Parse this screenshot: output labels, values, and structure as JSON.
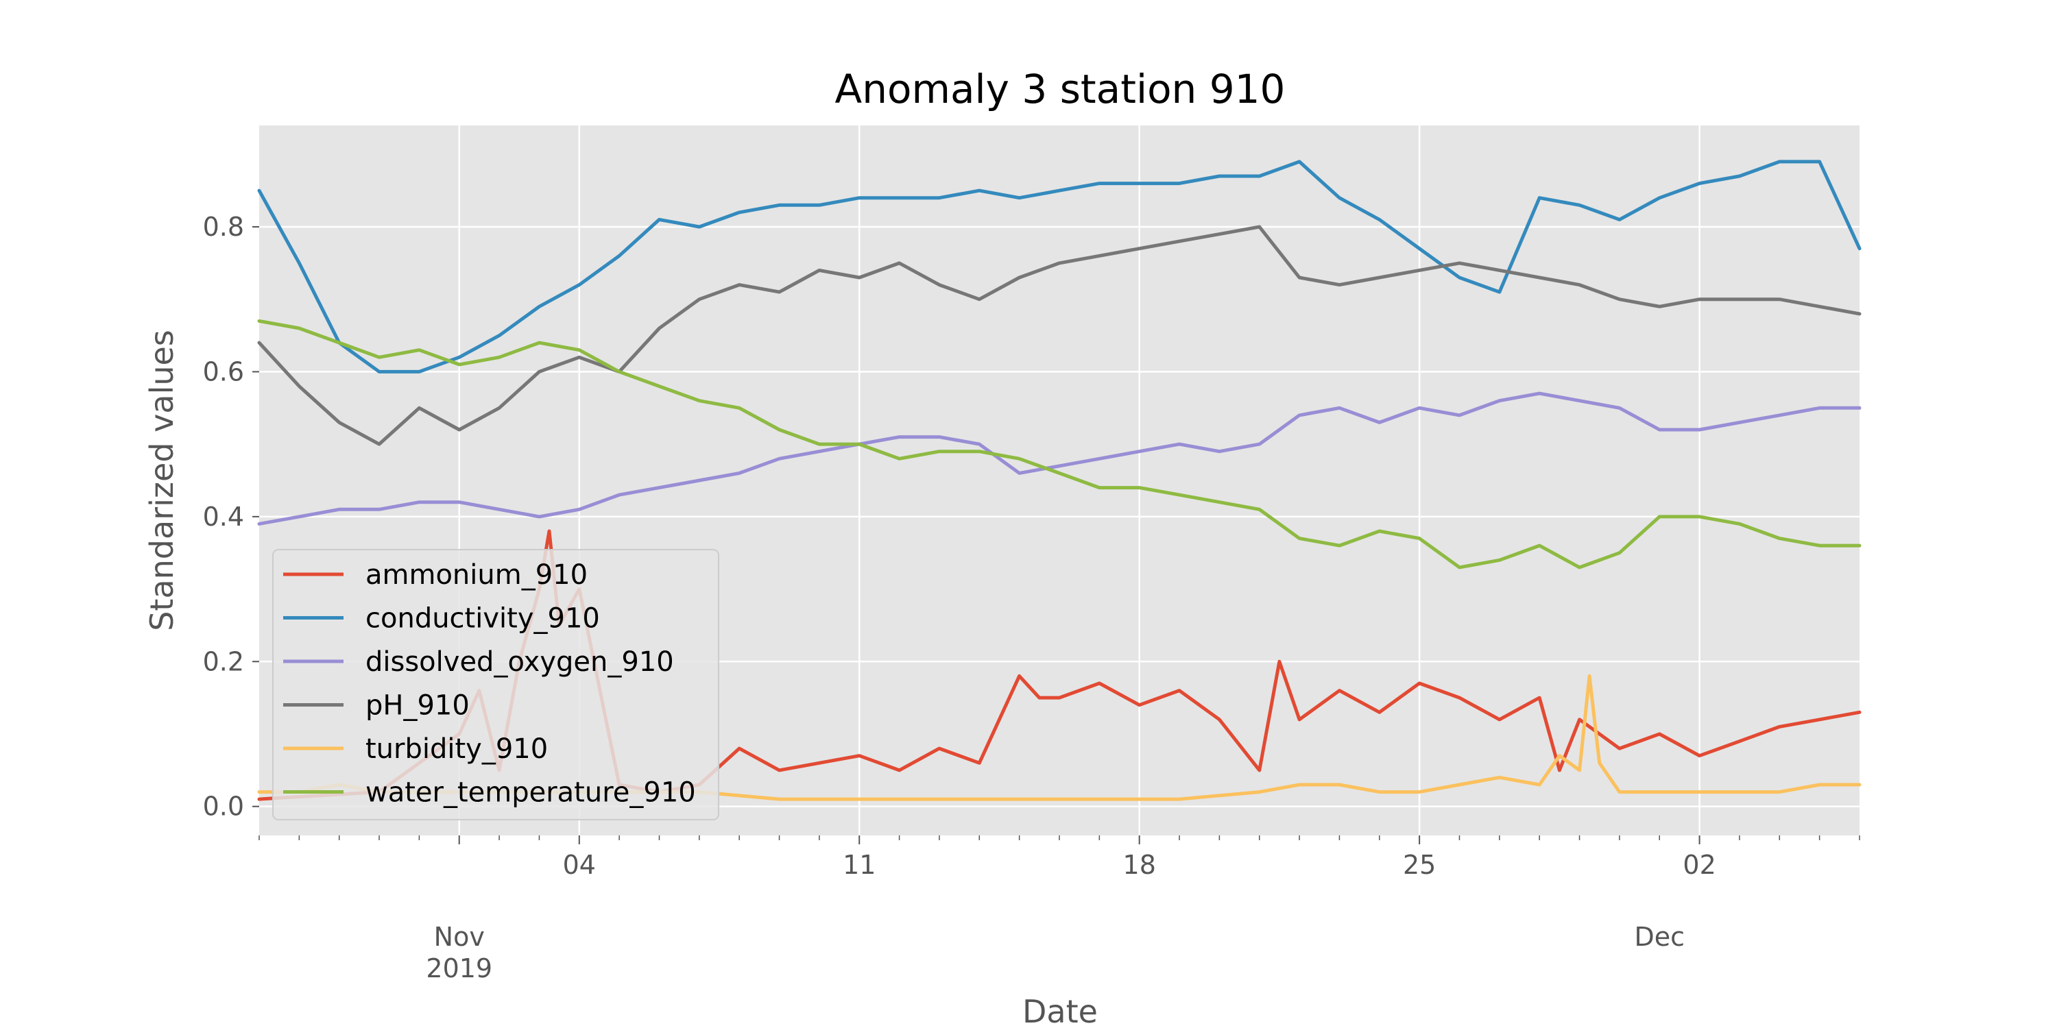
{
  "chart_data": {
    "type": "line",
    "title": "Anomaly 3 station 910",
    "xlabel": "Date",
    "ylabel": "Standarized values",
    "grid": true,
    "legend_position": "lower-left",
    "xlim": [
      "2019-10-27",
      "2019-12-06"
    ],
    "ylim": [
      -0.04,
      0.94
    ],
    "y_ticks": [
      0.0,
      0.2,
      0.4,
      0.6,
      0.8
    ],
    "y_tick_labels": [
      "0.0",
      "0.2",
      "0.4",
      "0.6",
      "0.8"
    ],
    "x_major_ticks": [
      {
        "date": "2019-11-01",
        "label": ""
      },
      {
        "date": "2019-11-04",
        "label": "04"
      },
      {
        "date": "2019-11-11",
        "label": "11"
      },
      {
        "date": "2019-11-18",
        "label": "18"
      },
      {
        "date": "2019-11-25",
        "label": "25"
      },
      {
        "date": "2019-12-02",
        "label": "02"
      }
    ],
    "x_group_labels": [
      {
        "date": "2019-11-01",
        "month": "Nov",
        "year": "2019"
      },
      {
        "date": "2019-12-01",
        "month": "Dec",
        "year": ""
      }
    ],
    "series": [
      {
        "name": "ammonium_910",
        "color": "#E24A33",
        "x": [
          "2019-10-27",
          "2019-10-30",
          "2019-11-01",
          "2019-11-01 12:00",
          "2019-11-02",
          "2019-11-02 12:00",
          "2019-11-03",
          "2019-11-03 06:00",
          "2019-11-03 12:00",
          "2019-11-04",
          "2019-11-05",
          "2019-11-06",
          "2019-11-07",
          "2019-11-08",
          "2019-11-09",
          "2019-11-10",
          "2019-11-11",
          "2019-11-12",
          "2019-11-13",
          "2019-11-14",
          "2019-11-15",
          "2019-11-15 12:00",
          "2019-11-16",
          "2019-11-17",
          "2019-11-18",
          "2019-11-19",
          "2019-11-20",
          "2019-11-21",
          "2019-11-21 12:00",
          "2019-11-22",
          "2019-11-23",
          "2019-11-24",
          "2019-11-25",
          "2019-11-26",
          "2019-11-27",
          "2019-11-28",
          "2019-11-28 12:00",
          "2019-11-29",
          "2019-11-30",
          "2019-12-01",
          "2019-12-02",
          "2019-12-03",
          "2019-12-04",
          "2019-12-05",
          "2019-12-06"
        ],
        "y": [
          0.01,
          0.02,
          0.1,
          0.16,
          0.05,
          0.2,
          0.3,
          0.38,
          0.25,
          0.3,
          0.03,
          0.02,
          0.03,
          0.08,
          0.05,
          0.06,
          0.07,
          0.05,
          0.08,
          0.06,
          0.18,
          0.15,
          0.15,
          0.17,
          0.14,
          0.16,
          0.12,
          0.05,
          0.2,
          0.12,
          0.16,
          0.13,
          0.17,
          0.15,
          0.12,
          0.15,
          0.05,
          0.12,
          0.08,
          0.1,
          0.07,
          0.09,
          0.11,
          0.12,
          0.13
        ]
      },
      {
        "name": "conductivity_910",
        "color": "#348ABD",
        "x": [
          "2019-10-27",
          "2019-10-28",
          "2019-10-29",
          "2019-10-30",
          "2019-10-31",
          "2019-11-01",
          "2019-11-02",
          "2019-11-03",
          "2019-11-04",
          "2019-11-05",
          "2019-11-06",
          "2019-11-07",
          "2019-11-08",
          "2019-11-09",
          "2019-11-10",
          "2019-11-11",
          "2019-11-12",
          "2019-11-13",
          "2019-11-14",
          "2019-11-15",
          "2019-11-16",
          "2019-11-17",
          "2019-11-18",
          "2019-11-19",
          "2019-11-20",
          "2019-11-21",
          "2019-11-22",
          "2019-11-23",
          "2019-11-24",
          "2019-11-25",
          "2019-11-26",
          "2019-11-27",
          "2019-11-28",
          "2019-11-29",
          "2019-11-30",
          "2019-12-01",
          "2019-12-02",
          "2019-12-03",
          "2019-12-04",
          "2019-12-05",
          "2019-12-06"
        ],
        "y": [
          0.85,
          0.75,
          0.64,
          0.6,
          0.6,
          0.62,
          0.65,
          0.69,
          0.72,
          0.76,
          0.81,
          0.8,
          0.82,
          0.83,
          0.83,
          0.84,
          0.84,
          0.84,
          0.85,
          0.84,
          0.85,
          0.86,
          0.86,
          0.86,
          0.87,
          0.87,
          0.89,
          0.84,
          0.81,
          0.77,
          0.73,
          0.71,
          0.84,
          0.83,
          0.81,
          0.84,
          0.86,
          0.87,
          0.89,
          0.89,
          0.77
        ]
      },
      {
        "name": "dissolved_oxygen_910",
        "color": "#988ED5",
        "x": [
          "2019-10-27",
          "2019-10-28",
          "2019-10-29",
          "2019-10-30",
          "2019-10-31",
          "2019-11-01",
          "2019-11-02",
          "2019-11-03",
          "2019-11-04",
          "2019-11-05",
          "2019-11-06",
          "2019-11-07",
          "2019-11-08",
          "2019-11-09",
          "2019-11-10",
          "2019-11-11",
          "2019-11-12",
          "2019-11-13",
          "2019-11-14",
          "2019-11-15",
          "2019-11-16",
          "2019-11-17",
          "2019-11-18",
          "2019-11-19",
          "2019-11-20",
          "2019-11-21",
          "2019-11-22",
          "2019-11-23",
          "2019-11-24",
          "2019-11-25",
          "2019-11-26",
          "2019-11-27",
          "2019-11-28",
          "2019-11-29",
          "2019-11-30",
          "2019-12-01",
          "2019-12-02",
          "2019-12-03",
          "2019-12-04",
          "2019-12-05",
          "2019-12-06"
        ],
        "y": [
          0.39,
          0.4,
          0.41,
          0.41,
          0.42,
          0.42,
          0.41,
          0.4,
          0.41,
          0.43,
          0.44,
          0.45,
          0.46,
          0.48,
          0.49,
          0.5,
          0.51,
          0.51,
          0.5,
          0.46,
          0.47,
          0.48,
          0.49,
          0.5,
          0.49,
          0.5,
          0.54,
          0.55,
          0.53,
          0.55,
          0.54,
          0.56,
          0.57,
          0.56,
          0.55,
          0.52,
          0.52,
          0.53,
          0.54,
          0.55,
          0.55
        ]
      },
      {
        "name": "pH_910",
        "color": "#777777",
        "x": [
          "2019-10-27",
          "2019-10-28",
          "2019-10-29",
          "2019-10-30",
          "2019-10-31",
          "2019-11-01",
          "2019-11-02",
          "2019-11-03",
          "2019-11-04",
          "2019-11-05",
          "2019-11-06",
          "2019-11-07",
          "2019-11-08",
          "2019-11-09",
          "2019-11-10",
          "2019-11-11",
          "2019-11-12",
          "2019-11-13",
          "2019-11-14",
          "2019-11-15",
          "2019-11-16",
          "2019-11-17",
          "2019-11-18",
          "2019-11-19",
          "2019-11-20",
          "2019-11-21",
          "2019-11-22",
          "2019-11-23",
          "2019-11-24",
          "2019-11-25",
          "2019-11-26",
          "2019-11-27",
          "2019-11-28",
          "2019-11-29",
          "2019-11-30",
          "2019-12-01",
          "2019-12-02",
          "2019-12-03",
          "2019-12-04",
          "2019-12-05",
          "2019-12-06"
        ],
        "y": [
          0.64,
          0.58,
          0.53,
          0.5,
          0.55,
          0.52,
          0.55,
          0.6,
          0.62,
          0.6,
          0.66,
          0.7,
          0.72,
          0.71,
          0.74,
          0.73,
          0.75,
          0.72,
          0.7,
          0.73,
          0.75,
          0.76,
          0.77,
          0.78,
          0.79,
          0.8,
          0.73,
          0.72,
          0.73,
          0.74,
          0.75,
          0.74,
          0.73,
          0.72,
          0.7,
          0.69,
          0.7,
          0.7,
          0.7,
          0.69,
          0.68
        ]
      },
      {
        "name": "turbidity_910",
        "color": "#FBC15E",
        "x": [
          "2019-10-27",
          "2019-10-28",
          "2019-10-29",
          "2019-10-30",
          "2019-10-31",
          "2019-11-01",
          "2019-11-03",
          "2019-11-05",
          "2019-11-07",
          "2019-11-09",
          "2019-11-11",
          "2019-11-13",
          "2019-11-15",
          "2019-11-17",
          "2019-11-19",
          "2019-11-21",
          "2019-11-22",
          "2019-11-23",
          "2019-11-24",
          "2019-11-25",
          "2019-11-26",
          "2019-11-27",
          "2019-11-28",
          "2019-11-28 12:00",
          "2019-11-29",
          "2019-11-29 06:00",
          "2019-11-29 12:00",
          "2019-11-30",
          "2019-12-01",
          "2019-12-02",
          "2019-12-03",
          "2019-12-04",
          "2019-12-05",
          "2019-12-06"
        ],
        "y": [
          0.02,
          0.02,
          0.03,
          0.02,
          0.02,
          0.02,
          0.02,
          0.02,
          0.02,
          0.01,
          0.01,
          0.01,
          0.01,
          0.01,
          0.01,
          0.02,
          0.03,
          0.03,
          0.02,
          0.02,
          0.03,
          0.04,
          0.03,
          0.07,
          0.05,
          0.18,
          0.06,
          0.02,
          0.02,
          0.02,
          0.02,
          0.02,
          0.03,
          0.03
        ]
      },
      {
        "name": "water_temperature_910",
        "color": "#8EBA42",
        "x": [
          "2019-10-27",
          "2019-10-28",
          "2019-10-29",
          "2019-10-30",
          "2019-10-31",
          "2019-11-01",
          "2019-11-02",
          "2019-11-03",
          "2019-11-04",
          "2019-11-05",
          "2019-11-06",
          "2019-11-07",
          "2019-11-08",
          "2019-11-09",
          "2019-11-10",
          "2019-11-11",
          "2019-11-12",
          "2019-11-13",
          "2019-11-14",
          "2019-11-15",
          "2019-11-16",
          "2019-11-17",
          "2019-11-18",
          "2019-11-19",
          "2019-11-20",
          "2019-11-21",
          "2019-11-22",
          "2019-11-23",
          "2019-11-24",
          "2019-11-25",
          "2019-11-26",
          "2019-11-27",
          "2019-11-28",
          "2019-11-29",
          "2019-11-30",
          "2019-12-01",
          "2019-12-02",
          "2019-12-03",
          "2019-12-04",
          "2019-12-05",
          "2019-12-06"
        ],
        "y": [
          0.67,
          0.66,
          0.64,
          0.62,
          0.63,
          0.61,
          0.62,
          0.64,
          0.63,
          0.6,
          0.58,
          0.56,
          0.55,
          0.52,
          0.5,
          0.5,
          0.48,
          0.49,
          0.49,
          0.48,
          0.46,
          0.44,
          0.44,
          0.43,
          0.42,
          0.41,
          0.37,
          0.36,
          0.38,
          0.37,
          0.33,
          0.34,
          0.36,
          0.33,
          0.35,
          0.4,
          0.4,
          0.39,
          0.37,
          0.36,
          0.36
        ]
      }
    ]
  }
}
